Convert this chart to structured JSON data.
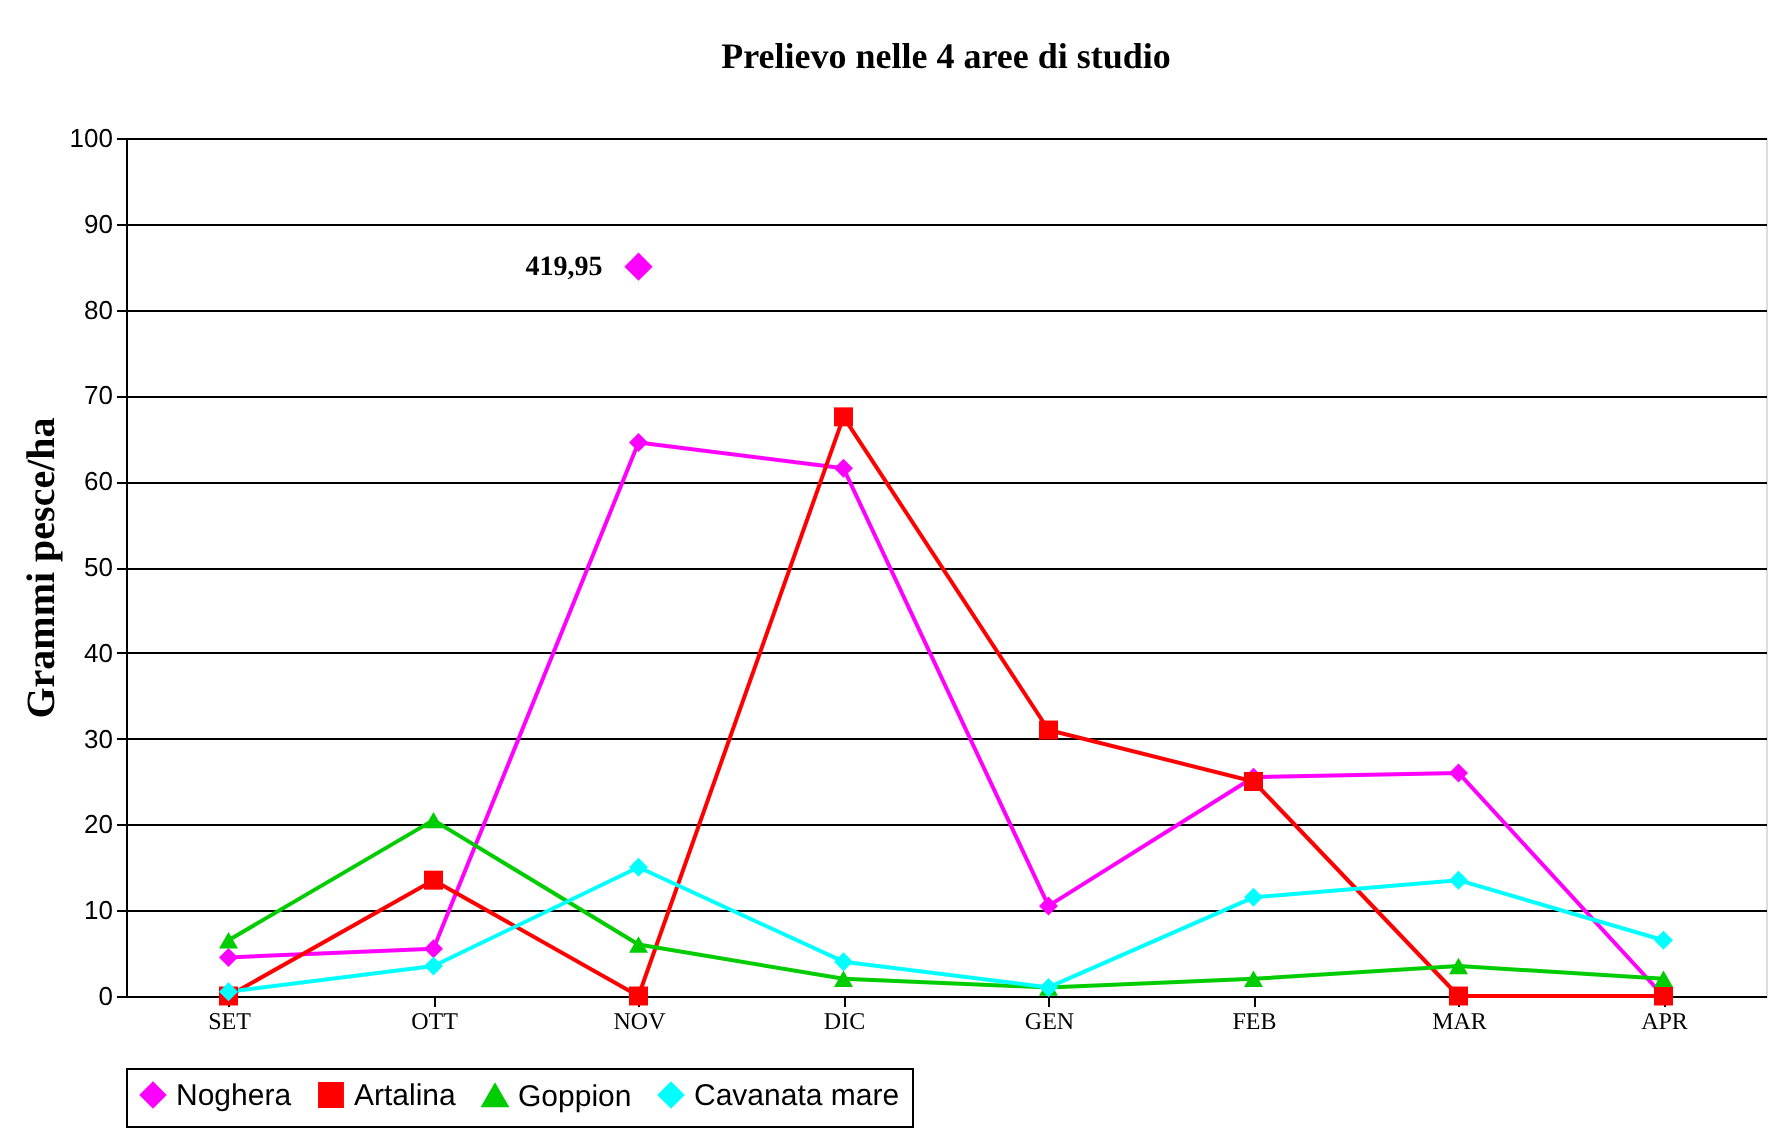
{
  "chart_data": {
    "type": "line",
    "title": "Prelievo nelle 4 aree di studio",
    "ylabel": "Grammi pesce/ha",
    "categories": [
      "SET",
      "OTT",
      "NOV",
      "DIC",
      "GEN",
      "FEB",
      "MAR",
      "APR"
    ],
    "series": [
      {
        "name": "Noghera",
        "color": "#ff00ff",
        "marker": "diamond",
        "values": [
          4.5,
          5.5,
          64.5,
          61.5,
          10.5,
          25.5,
          26,
          0
        ]
      },
      {
        "name": "Artalina",
        "color": "#ff0000",
        "marker": "square",
        "values": [
          0,
          13.5,
          0,
          67.5,
          31,
          25,
          0,
          0
        ]
      },
      {
        "name": "Goppion",
        "color": "#00cc00",
        "marker": "triangle",
        "values": [
          6.5,
          20.5,
          6,
          2,
          1,
          2,
          3.5,
          2
        ]
      },
      {
        "name": "Cavanata mare",
        "color": "#00ffff",
        "marker": "diamond",
        "values": [
          0.5,
          3.5,
          15,
          4,
          1,
          11.5,
          13.5,
          6.5
        ]
      }
    ],
    "annotations": [
      {
        "text": "419,95",
        "x": "NOV",
        "y": 85
      }
    ],
    "ylim": [
      0,
      100
    ],
    "yticks": [
      0,
      10,
      20,
      30,
      40,
      50,
      60,
      70,
      80,
      90,
      100
    ],
    "grid": "y",
    "legend": "bottom",
    "line_style": "solid"
  }
}
